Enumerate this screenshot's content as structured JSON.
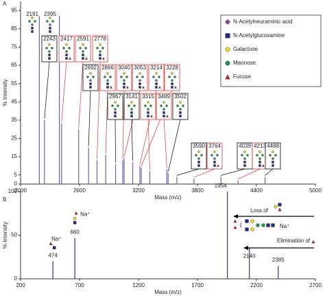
{
  "chart_data": [
    {
      "type": "spectrum",
      "panel": "A",
      "x_label": "Mass (m/z)",
      "y_label": "% Intensity",
      "xlim": [
        2000,
        5000
      ],
      "xticks": [
        2000,
        2600,
        3200,
        3800,
        4400,
        5000
      ],
      "ylim": [
        0,
        100
      ],
      "yticks": [
        0,
        5,
        15,
        25,
        35,
        45,
        55,
        65,
        75,
        85,
        95
      ],
      "color": "#6a5fb0",
      "x": [
        2191,
        2243,
        2395,
        2417,
        2591,
        2692,
        2778,
        2866,
        2967,
        3040,
        3053,
        3141,
        3214,
        3228,
        3315,
        3489,
        3502,
        3590,
        3764,
        4039,
        4213,
        4488
      ],
      "values": [
        92,
        35,
        92,
        33,
        30,
        20,
        13,
        16,
        11,
        13,
        14,
        12,
        10,
        9,
        7,
        8,
        6,
        4,
        3,
        4,
        2,
        4
      ],
      "label_colors": [
        null,
        "#000000",
        null,
        "#e03030",
        "#e03030",
        "#000000",
        "#e03030",
        "#e03030",
        "#000000",
        "#e03030",
        "#e03030",
        "#000000",
        "#e03030",
        "#e03030",
        "#e03030",
        "#e03030",
        "#000000",
        "#000000",
        "#e03030",
        "#000000",
        "#e03030",
        "#000000"
      ],
      "legend": [
        {
          "name": "N-Acetylneuraminic acid",
          "color": "#9b3f8f",
          "shape": "diamond"
        },
        {
          "name": "N-Acetylglucosamine",
          "color": "#1f2a8a",
          "shape": "square"
        },
        {
          "name": "Galactose",
          "color": "#f2e21a",
          "shape": "circle"
        },
        {
          "name": "Mannose",
          "color": "#1a9a4a",
          "shape": "circle"
        },
        {
          "name": "Fucose",
          "color": "#d62020",
          "shape": "triangle"
        }
      ]
    },
    {
      "type": "spectrum",
      "panel": "B",
      "x_label": "Mass (m/z)",
      "y_label": "% Intensity",
      "xlim": [
        200,
        2700
      ],
      "xticks": [
        200,
        700,
        1200,
        1700,
        2200,
        2700
      ],
      "ylim": [
        0,
        100
      ],
      "yticks": [
        0,
        50,
        100
      ],
      "color": "#3a2f8a",
      "x": [
        474,
        660,
        1954,
        2140,
        2385
      ],
      "values": [
        20,
        47,
        100,
        35,
        15
      ],
      "annotations": [
        "Na⁺",
        "Na⁺",
        "Na⁺",
        "Loss of",
        "Elimination of"
      ]
    }
  ]
}
